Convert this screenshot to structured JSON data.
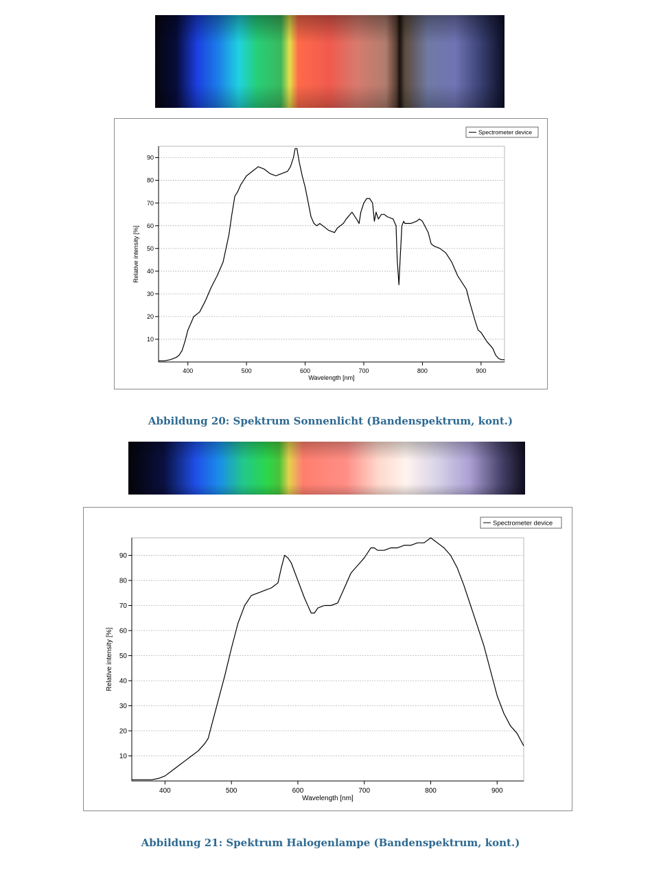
{
  "colors": {
    "caption": "#2e6a91",
    "line": "#000000",
    "grid": "#a0a0a0"
  },
  "figures": [
    {
      "caption": "Abbildung 20: Spektrum Sonnenlicht (Bandenspektrum, kont.)",
      "strip_stops": [
        [
          "0%",
          "#05060e"
        ],
        [
          "6%",
          "#070c3a"
        ],
        [
          "12%",
          "#1b3fe0"
        ],
        [
          "18%",
          "#1c7de8"
        ],
        [
          "24%",
          "#1fd2e0"
        ],
        [
          "29%",
          "#25d07a"
        ],
        [
          "36%",
          "#3bb85c"
        ],
        [
          "38.5%",
          "#e6e04a"
        ],
        [
          "41%",
          "#ff6a4a"
        ],
        [
          "50%",
          "#f05a4e"
        ],
        [
          "58%",
          "#d67c6f"
        ],
        [
          "66%",
          "#b07d6e"
        ],
        [
          "69%",
          "#5c4034"
        ],
        [
          "70%",
          "#17120f"
        ],
        [
          "71.5%",
          "#5d4c3d"
        ],
        [
          "78%",
          "#707aa4"
        ],
        [
          "86%",
          "#7074b4"
        ],
        [
          "93%",
          "#3b4275"
        ],
        [
          "100%",
          "#0b0d24"
        ]
      ],
      "chart_data": {
        "type": "line",
        "xlabel": "Wavelength [nm]",
        "ylabel": "Relative intensity [%]",
        "xlim": [
          350,
          940
        ],
        "ylim": [
          0,
          95
        ],
        "xticks": [
          400,
          500,
          600,
          700,
          800,
          900
        ],
        "yticks": [
          10,
          20,
          30,
          40,
          50,
          60,
          70,
          80,
          90
        ],
        "grid": true,
        "legend_position": "top-right",
        "series": [
          {
            "name": "Spectrometer device",
            "x": [
              350,
              360,
              370,
              380,
              385,
              390,
              395,
              400,
              410,
              420,
              430,
              440,
              450,
              460,
              470,
              475,
              480,
              485,
              490,
              495,
              500,
              510,
              520,
              530,
              540,
              550,
              560,
              570,
              575,
              580,
              583,
              586,
              590,
              595,
              600,
              610,
              615,
              620,
              625,
              630,
              640,
              650,
              655,
              660,
              665,
              670,
              680,
              690,
              692,
              695,
              700,
              705,
              710,
              715,
              718,
              721,
              725,
              730,
              735,
              740,
              750,
              755,
              757,
              760,
              762,
              765,
              768,
              770,
              780,
              790,
              795,
              800,
              810,
              815,
              820,
              830,
              840,
              850,
              860,
              870,
              875,
              880,
              890,
              895,
              900,
              910,
              920,
              925,
              930,
              935,
              940
            ],
            "y": [
              0.5,
              0.5,
              1,
              2,
              3,
              5,
              9,
              14,
              20,
              22,
              27,
              33,
              38,
              44,
              56,
              65,
              73,
              75,
              78,
              80,
              82,
              84,
              86,
              85,
              83,
              82,
              83,
              84,
              86,
              90,
              94,
              94,
              88,
              82,
              77,
              64,
              61,
              60,
              61,
              60,
              58,
              57,
              59,
              60,
              61,
              63,
              66,
              62,
              61,
              66,
              70,
              72,
              72,
              70,
              62,
              66,
              63,
              65,
              65,
              64,
              63,
              60,
              45,
              34,
              45,
              60,
              62,
              61,
              61,
              62,
              63,
              62,
              57,
              52,
              51,
              50,
              48,
              44,
              38,
              34,
              32,
              27,
              18,
              14,
              13,
              9,
              6,
              3,
              1.5,
              1,
              1
            ]
          }
        ]
      }
    },
    {
      "caption": "Abbildung 21: Spektrum Halogenlampe (Bandenspektrum, kont.)",
      "strip_stops": [
        [
          "0%",
          "#040408"
        ],
        [
          "9%",
          "#0a1040"
        ],
        [
          "17%",
          "#1f4fe8"
        ],
        [
          "23%",
          "#1a8ee8"
        ],
        [
          "29%",
          "#22c88a"
        ],
        [
          "35%",
          "#2cd64a"
        ],
        [
          "38%",
          "#49c23a"
        ],
        [
          "40.5%",
          "#e4d24c"
        ],
        [
          "44%",
          "#ff7e6e"
        ],
        [
          "55%",
          "#ff8f86"
        ],
        [
          "63%",
          "#ffd8cc"
        ],
        [
          "70%",
          "#fff4ee"
        ],
        [
          "78%",
          "#d7d2e8"
        ],
        [
          "86%",
          "#aca0d4"
        ],
        [
          "94%",
          "#46416a"
        ],
        [
          "100%",
          "#0f0d1e"
        ]
      ],
      "chart_data": {
        "type": "line",
        "xlabel": "Wavelength [nm]",
        "ylabel": "Relative intensity [%]",
        "xlim": [
          350,
          940
        ],
        "ylim": [
          0,
          97
        ],
        "xticks": [
          400,
          500,
          600,
          700,
          800,
          900
        ],
        "yticks": [
          10,
          20,
          30,
          40,
          50,
          60,
          70,
          80,
          90
        ],
        "grid": true,
        "legend_position": "top-right",
        "series": [
          {
            "name": "Spectrometer device",
            "x": [
              350,
              360,
              370,
              380,
              390,
              400,
              410,
              420,
              430,
              440,
              450,
              460,
              465,
              470,
              480,
              490,
              500,
              510,
              520,
              530,
              540,
              550,
              560,
              570,
              575,
              580,
              585,
              590,
              600,
              610,
              620,
              625,
              630,
              640,
              650,
              660,
              670,
              680,
              690,
              700,
              710,
              715,
              720,
              730,
              740,
              750,
              760,
              770,
              780,
              790,
              800,
              810,
              820,
              830,
              840,
              850,
              860,
              870,
              880,
              890,
              900,
              910,
              920,
              930,
              940
            ],
            "y": [
              0.5,
              0.5,
              0.5,
              0.5,
              1,
              2,
              4,
              6,
              8,
              10,
              12,
              15,
              17,
              22,
              32,
              42,
              53,
              63,
              70,
              74,
              75,
              76,
              77,
              79,
              85,
              90,
              89,
              87,
              80,
              73,
              67,
              67,
              69,
              70,
              70,
              71,
              77,
              83,
              86,
              89,
              93,
              93,
              92,
              92,
              93,
              93,
              94,
              94,
              95,
              95,
              97,
              95,
              93,
              90,
              85,
              78,
              70,
              62,
              54,
              44,
              34,
              27,
              22,
              19,
              14
            ]
          }
        ]
      }
    }
  ]
}
